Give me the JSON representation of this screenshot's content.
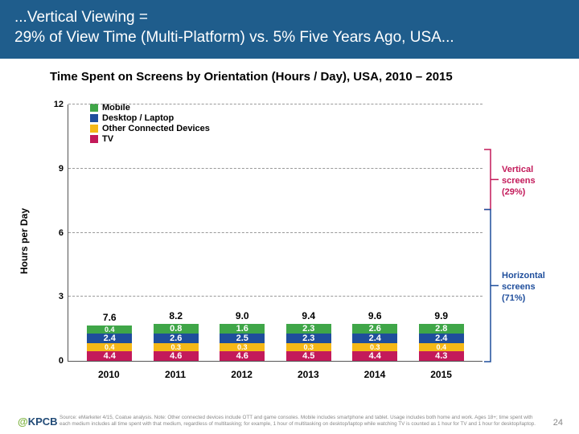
{
  "header": {
    "line1": "...Vertical Viewing =",
    "line2": "29% of View Time (Multi-Platform) vs. 5% Five Years Ago, USA...",
    "bg_color": "#1f5d8c"
  },
  "chart": {
    "type": "stacked-bar",
    "title": "Time Spent on Screens by Orientation (Hours / Day), USA, 2010 – 2015",
    "y_label": "Hours per Day",
    "ylim": [
      0,
      12
    ],
    "yticks": [
      0,
      3,
      6,
      9,
      12
    ],
    "categories": [
      "2010",
      "2011",
      "2012",
      "2013",
      "2014",
      "2015"
    ],
    "series": [
      {
        "name": "Mobile",
        "color": "#3fa648"
      },
      {
        "name": "Desktop / Laptop",
        "color": "#1f4e9c"
      },
      {
        "name": "Other Connected Devices",
        "color": "#f5b817"
      },
      {
        "name": "TV",
        "color": "#c31a5a"
      }
    ],
    "data": {
      "TV": [
        4.4,
        4.6,
        4.6,
        4.5,
        4.4,
        4.3
      ],
      "Other Connected Devices": [
        0.4,
        0.3,
        0.3,
        0.3,
        0.3,
        0.4
      ],
      "Desktop / Laptop": [
        2.4,
        2.6,
        2.5,
        2.3,
        2.4,
        2.4
      ],
      "Mobile": [
        0.4,
        0.8,
        1.6,
        2.3,
        2.6,
        2.8
      ]
    },
    "totals": [
      "7.6",
      "8.2",
      "9.0",
      "9.4",
      "9.6",
      "9.9"
    ],
    "grid_color": "#999999",
    "label_fontsize": 11
  },
  "annotations": {
    "vertical": {
      "label_l1": "Vertical",
      "label_l2": "screens",
      "pct": "(29%)",
      "color": "#c31a5a"
    },
    "horizontal": {
      "label_l1": "Horizontal",
      "label_l2": "screens",
      "pct": "(71%)",
      "color": "#1f4e9c"
    }
  },
  "footer": {
    "handle_at": "@",
    "handle": "KPCB",
    "source": "Source: eMarketer 4/15, Coatue analysis. Note: Other connected devices include OTT and game consoles. Mobile includes smartphone and tablet. Usage includes both home and work. Ages 18+; time spent with each medium includes all time spent with that medium, regardless of multitasking; for example, 1 hour of multitasking on desktop/laptop while watching TV is counted as 1 hour for TV and 1 hour for desktop/laptop.",
    "page": "24"
  }
}
